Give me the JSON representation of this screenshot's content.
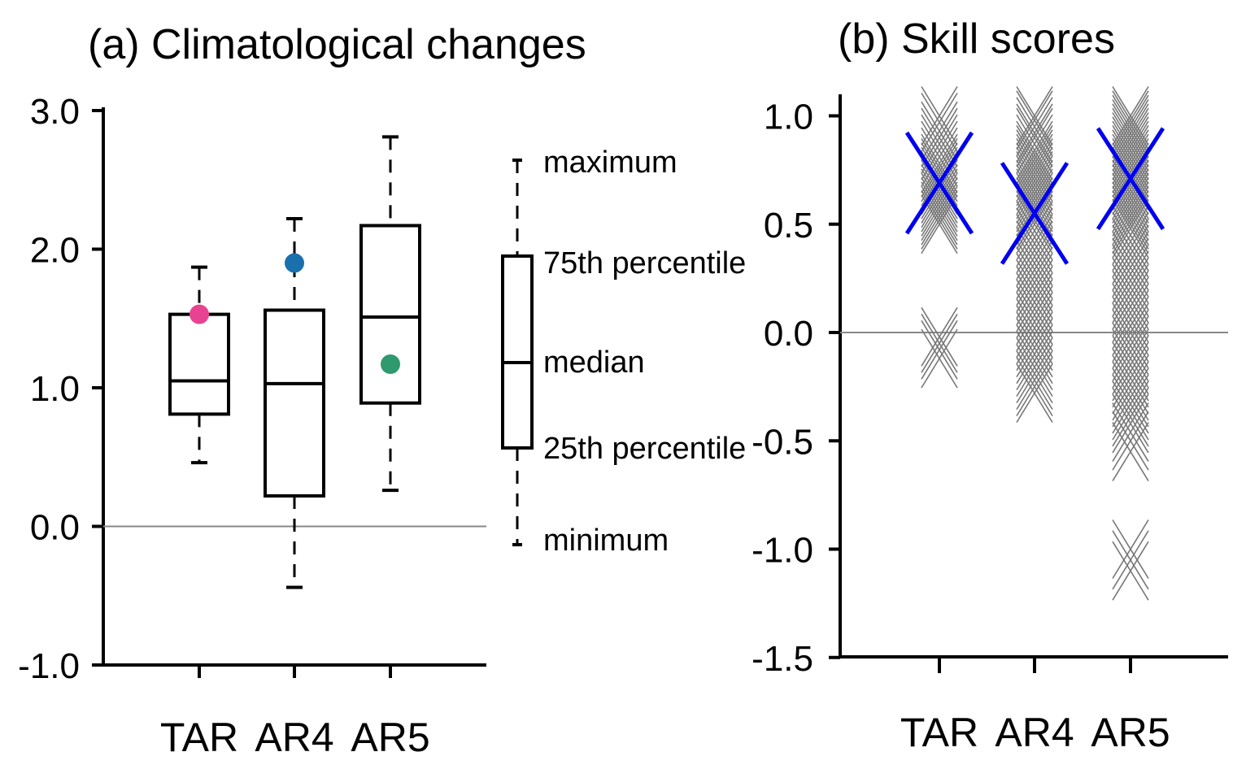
{
  "chart_data": [
    {
      "type": "box",
      "title": "(a) Climatological changes",
      "categories": [
        "TAR",
        "AR4",
        "AR5"
      ],
      "ylim": [
        -1.0,
        3.0
      ],
      "yticks": [
        "3.0",
        "2.0",
        "1.0",
        "0.0",
        "-1.0"
      ],
      "ytick_values": [
        3.0,
        2.0,
        1.0,
        0.0,
        -1.0
      ],
      "grid": false,
      "reference_line": 0.0,
      "boxes": [
        {
          "category": "TAR",
          "min": 0.46,
          "q1": 0.81,
          "median": 1.05,
          "q3": 1.53,
          "max": 1.87
        },
        {
          "category": "AR4",
          "min": -0.44,
          "q1": 0.22,
          "median": 1.03,
          "q3": 1.56,
          "max": 2.22
        },
        {
          "category": "AR5",
          "min": 0.26,
          "q1": 0.89,
          "median": 1.51,
          "q3": 2.17,
          "max": 2.81
        }
      ],
      "points": [
        {
          "category": "TAR",
          "value": 1.53,
          "color": "#e84393"
        },
        {
          "category": "AR4",
          "value": 1.9,
          "color": "#1a6fad"
        },
        {
          "category": "AR5",
          "value": 1.17,
          "color": "#2e9a6e"
        }
      ],
      "legend_key": {
        "placement": "right",
        "labels": {
          "max": "maximum",
          "q3": "75th percentile",
          "median": "median",
          "q1": "25th percentile",
          "min": "minimum"
        }
      }
    },
    {
      "type": "scatter",
      "title": "(b) Skill scores",
      "categories": [
        "TAR",
        "AR4",
        "AR5"
      ],
      "ylim": [
        -1.5,
        1.1
      ],
      "yticks": [
        "1.0",
        "0.5",
        "0.0",
        "-0.5",
        "-1.0",
        "-1.5"
      ],
      "ytick_values": [
        1.0,
        0.5,
        0.0,
        -0.5,
        -1.0,
        -1.5
      ],
      "grid": false,
      "reference_line": 0.0,
      "marker": "x",
      "member_color": "#777777",
      "mean_color": "#0000ee",
      "series": [
        {
          "category": "TAR",
          "values": [
            1.0,
            0.97,
            0.93,
            0.9,
            0.87,
            0.84,
            0.81,
            0.78,
            0.76,
            0.74,
            0.72,
            0.7,
            0.68,
            0.66,
            0.64,
            0.62,
            0.6,
            0.58,
            0.56,
            0.54,
            0.52,
            0.5,
            -0.02,
            -0.05,
            -0.08,
            -0.12
          ],
          "mean": 0.69
        },
        {
          "category": "AR4",
          "values": [
            1.0,
            0.98,
            0.95,
            0.92,
            0.9,
            0.87,
            0.84,
            0.82,
            0.8,
            0.78,
            0.76,
            0.74,
            0.72,
            0.7,
            0.68,
            0.66,
            0.64,
            0.62,
            0.6,
            0.58,
            0.56,
            0.54,
            0.52,
            0.5,
            0.47,
            0.44,
            0.41,
            0.38,
            0.35,
            0.32,
            0.29,
            0.26,
            0.23,
            0.2,
            0.17,
            0.14,
            0.11,
            0.08,
            0.05,
            0.02,
            -0.01,
            -0.04,
            -0.07,
            -0.1,
            -0.13,
            -0.16,
            -0.19,
            -0.22,
            -0.25,
            -0.28
          ],
          "mean": 0.55
        },
        {
          "category": "AR5",
          "values": [
            1.0,
            0.98,
            0.96,
            0.94,
            0.92,
            0.9,
            0.88,
            0.86,
            0.84,
            0.82,
            0.8,
            0.78,
            0.76,
            0.74,
            0.72,
            0.7,
            0.68,
            0.66,
            0.64,
            0.62,
            0.6,
            0.58,
            0.56,
            0.54,
            0.52,
            0.5,
            0.48,
            0.45,
            0.42,
            0.39,
            0.36,
            0.33,
            0.3,
            0.27,
            0.24,
            0.21,
            0.18,
            0.15,
            0.12,
            0.09,
            0.06,
            0.03,
            0.0,
            -0.03,
            -0.06,
            -0.09,
            -0.12,
            -0.15,
            -0.18,
            -0.21,
            -0.24,
            -0.27,
            -0.3,
            -0.33,
            -0.36,
            -0.39,
            -0.42,
            -0.46,
            -0.5,
            -0.55,
            -1.0,
            -1.05,
            -1.1
          ],
          "mean": 0.71
        }
      ]
    }
  ]
}
